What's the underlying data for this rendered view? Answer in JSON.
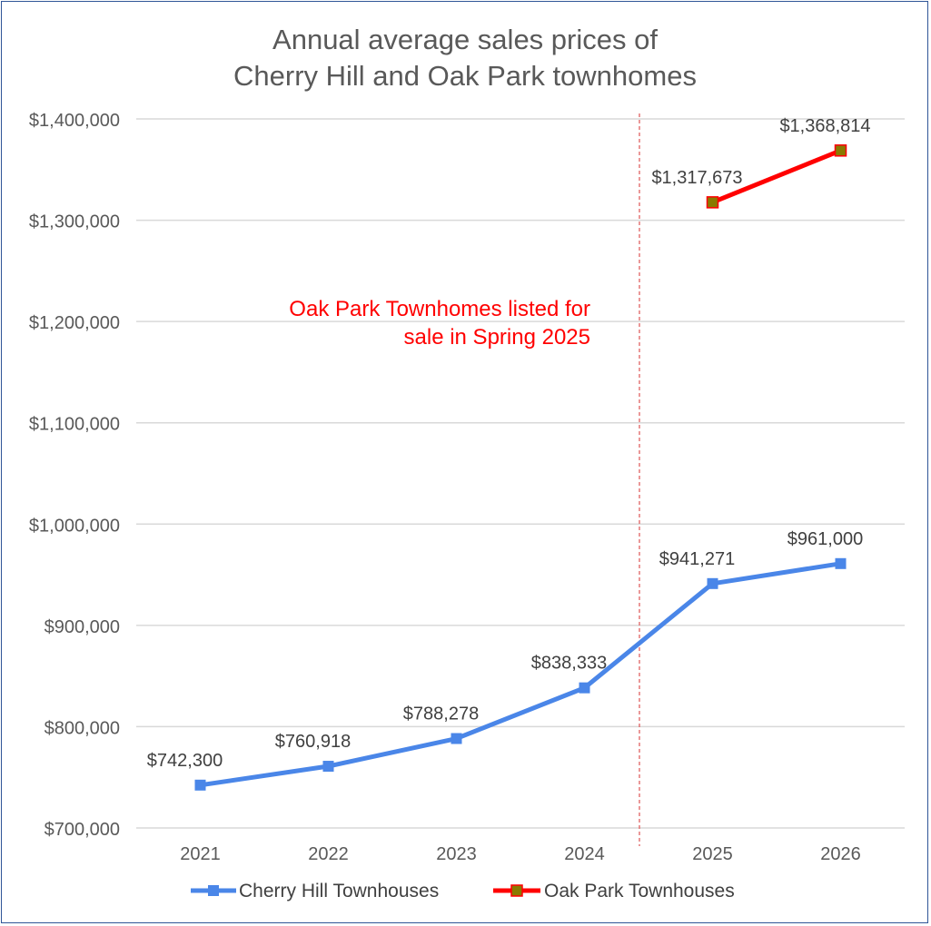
{
  "chart_data": {
    "type": "line",
    "title_lines": [
      "Annual average sales prices of",
      "Cherry Hill and Oak Park townhomes"
    ],
    "categories": [
      "2021",
      "2022",
      "2023",
      "2024",
      "2025",
      "2026"
    ],
    "ylim": [
      700000,
      1400000
    ],
    "y_ticks": [
      700000,
      800000,
      900000,
      1000000,
      1100000,
      1200000,
      1300000,
      1400000
    ],
    "y_tick_labels": [
      "$700,000",
      "$800,000",
      "$900,000",
      "$1,000,000",
      "$1,100,000",
      "$1,200,000",
      "$1,300,000",
      "$1,400,000"
    ],
    "grid": true,
    "legend_position": "bottom",
    "series": [
      {
        "name": "Cherry Hill Townhouses",
        "color": "#4a86e8",
        "marker_color": "#4a86e8",
        "values": [
          742300,
          760918,
          788278,
          838333,
          941271,
          961000
        ],
        "labels": [
          "$742,300",
          "$760,918",
          "$788,278",
          "$838,333",
          "$941,271",
          "$961,000"
        ]
      },
      {
        "name": "Oak Park Townhouses",
        "color": "#ff0000",
        "marker_color": "#8a7a00",
        "values": [
          null,
          null,
          null,
          null,
          1317673,
          1368814
        ],
        "labels": [
          "",
          "",
          "",
          "",
          "$1,317,673",
          "$1,368,814"
        ]
      }
    ],
    "annotation": {
      "lines": [
        "Oak Park Townhomes listed for",
        "sale in Spring 2025"
      ],
      "color": "#ff0000"
    },
    "reference_line": {
      "between": [
        "2024",
        "2025"
      ],
      "style": "dashed",
      "color": "#e06060"
    }
  }
}
